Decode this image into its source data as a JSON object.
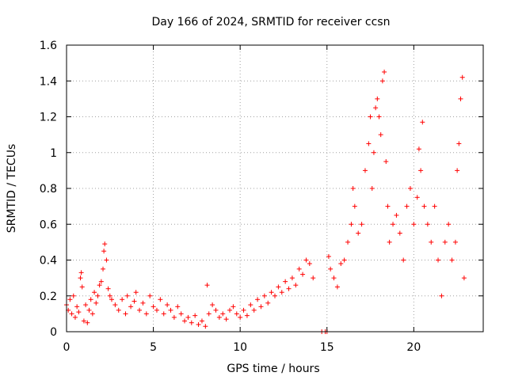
{
  "chart_data": {
    "type": "scatter",
    "title": "Day 166 of 2024, SRMTID for receiver ccsn",
    "xlabel": "GPS time / hours",
    "ylabel": "SRMTID / TECUs",
    "xlim": [
      0,
      24
    ],
    "ylim": [
      0,
      1.6
    ],
    "xticks": [
      0,
      5,
      10,
      15,
      20
    ],
    "xtick_labels": [
      "0",
      "5",
      "10",
      "15",
      "20"
    ],
    "yticks": [
      0,
      0.2,
      0.4,
      0.6,
      0.8,
      1.0,
      1.2,
      1.4,
      1.6
    ],
    "ytick_labels": [
      "0",
      "0.2",
      "0.4",
      "0.6",
      "0.8",
      "1",
      "1.2",
      "1.4",
      "1.6"
    ],
    "grid": true,
    "marker": "+",
    "series": [
      {
        "name": "SRMTID",
        "color": "#ff0000",
        "points": [
          [
            0.0,
            0.15
          ],
          [
            0.1,
            0.12
          ],
          [
            0.2,
            0.18
          ],
          [
            0.3,
            0.1
          ],
          [
            0.4,
            0.2
          ],
          [
            0.5,
            0.08
          ],
          [
            0.6,
            0.14
          ],
          [
            0.7,
            0.11
          ],
          [
            0.8,
            0.3
          ],
          [
            0.85,
            0.33
          ],
          [
            0.9,
            0.25
          ],
          [
            1.0,
            0.06
          ],
          [
            1.1,
            0.15
          ],
          [
            1.2,
            0.05
          ],
          [
            1.3,
            0.12
          ],
          [
            1.4,
            0.18
          ],
          [
            1.5,
            0.1
          ],
          [
            1.6,
            0.22
          ],
          [
            1.7,
            0.16
          ],
          [
            1.8,
            0.2
          ],
          [
            1.9,
            0.26
          ],
          [
            2.0,
            0.28
          ],
          [
            2.1,
            0.35
          ],
          [
            2.15,
            0.45
          ],
          [
            2.2,
            0.49
          ],
          [
            2.3,
            0.4
          ],
          [
            2.4,
            0.24
          ],
          [
            2.5,
            0.2
          ],
          [
            2.6,
            0.18
          ],
          [
            2.8,
            0.15
          ],
          [
            3.0,
            0.12
          ],
          [
            3.2,
            0.18
          ],
          [
            3.4,
            0.1
          ],
          [
            3.5,
            0.2
          ],
          [
            3.7,
            0.14
          ],
          [
            3.9,
            0.17
          ],
          [
            4.0,
            0.22
          ],
          [
            4.2,
            0.12
          ],
          [
            4.4,
            0.16
          ],
          [
            4.6,
            0.1
          ],
          [
            4.8,
            0.2
          ],
          [
            5.0,
            0.14
          ],
          [
            5.2,
            0.12
          ],
          [
            5.4,
            0.18
          ],
          [
            5.6,
            0.1
          ],
          [
            5.8,
            0.15
          ],
          [
            6.0,
            0.12
          ],
          [
            6.2,
            0.08
          ],
          [
            6.4,
            0.14
          ],
          [
            6.6,
            0.1
          ],
          [
            6.8,
            0.06
          ],
          [
            7.0,
            0.08
          ],
          [
            7.2,
            0.05
          ],
          [
            7.4,
            0.09
          ],
          [
            7.6,
            0.04
          ],
          [
            7.8,
            0.06
          ],
          [
            8.0,
            0.03
          ],
          [
            8.1,
            0.26
          ],
          [
            8.2,
            0.1
          ],
          [
            8.4,
            0.15
          ],
          [
            8.6,
            0.12
          ],
          [
            8.8,
            0.08
          ],
          [
            9.0,
            0.1
          ],
          [
            9.2,
            0.07
          ],
          [
            9.4,
            0.12
          ],
          [
            9.6,
            0.14
          ],
          [
            9.8,
            0.1
          ],
          [
            10.0,
            0.08
          ],
          [
            10.2,
            0.12
          ],
          [
            10.4,
            0.09
          ],
          [
            10.6,
            0.15
          ],
          [
            10.8,
            0.12
          ],
          [
            11.0,
            0.18
          ],
          [
            11.2,
            0.14
          ],
          [
            11.4,
            0.2
          ],
          [
            11.6,
            0.16
          ],
          [
            11.8,
            0.22
          ],
          [
            12.0,
            0.2
          ],
          [
            12.2,
            0.25
          ],
          [
            12.4,
            0.22
          ],
          [
            12.6,
            0.28
          ],
          [
            12.8,
            0.24
          ],
          [
            13.0,
            0.3
          ],
          [
            13.2,
            0.26
          ],
          [
            13.4,
            0.35
          ],
          [
            13.6,
            0.32
          ],
          [
            13.8,
            0.4
          ],
          [
            14.0,
            0.38
          ],
          [
            14.2,
            0.3
          ],
          [
            14.7,
            0.0
          ],
          [
            14.9,
            0.0
          ],
          [
            15.0,
            0.0
          ],
          [
            15.1,
            0.42
          ],
          [
            15.2,
            0.35
          ],
          [
            15.4,
            0.3
          ],
          [
            15.6,
            0.25
          ],
          [
            15.8,
            0.38
          ],
          [
            16.0,
            0.4
          ],
          [
            16.2,
            0.5
          ],
          [
            16.4,
            0.6
          ],
          [
            16.5,
            0.8
          ],
          [
            16.6,
            0.7
          ],
          [
            16.8,
            0.55
          ],
          [
            17.0,
            0.6
          ],
          [
            17.2,
            0.9
          ],
          [
            17.4,
            1.05
          ],
          [
            17.5,
            1.2
          ],
          [
            17.6,
            0.8
          ],
          [
            17.7,
            1.0
          ],
          [
            17.8,
            1.25
          ],
          [
            17.9,
            1.3
          ],
          [
            18.0,
            1.2
          ],
          [
            18.1,
            1.1
          ],
          [
            18.2,
            1.4
          ],
          [
            18.3,
            1.45
          ],
          [
            18.4,
            0.95
          ],
          [
            18.5,
            0.7
          ],
          [
            18.6,
            0.5
          ],
          [
            18.8,
            0.6
          ],
          [
            19.0,
            0.65
          ],
          [
            19.2,
            0.55
          ],
          [
            19.4,
            0.4
          ],
          [
            19.6,
            0.7
          ],
          [
            19.8,
            0.8
          ],
          [
            20.0,
            0.6
          ],
          [
            20.2,
            0.75
          ],
          [
            20.3,
            1.02
          ],
          [
            20.4,
            0.9
          ],
          [
            20.5,
            1.17
          ],
          [
            20.6,
            0.7
          ],
          [
            20.8,
            0.6
          ],
          [
            21.0,
            0.5
          ],
          [
            21.2,
            0.7
          ],
          [
            21.4,
            0.4
          ],
          [
            21.6,
            0.2
          ],
          [
            21.8,
            0.5
          ],
          [
            22.0,
            0.6
          ],
          [
            22.2,
            0.4
          ],
          [
            22.4,
            0.5
          ],
          [
            22.5,
            0.9
          ],
          [
            22.6,
            1.05
          ],
          [
            22.7,
            1.3
          ],
          [
            22.8,
            1.42
          ],
          [
            22.9,
            0.3
          ]
        ]
      }
    ]
  }
}
